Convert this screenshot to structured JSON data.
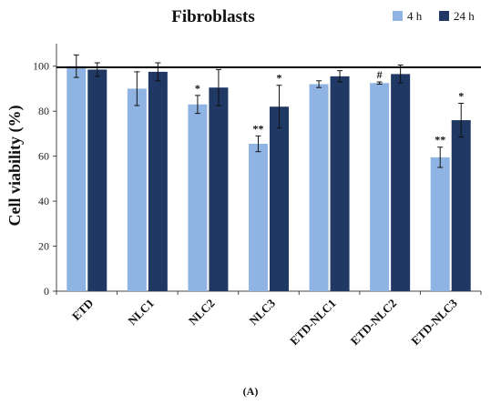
{
  "chart_data": {
    "type": "bar",
    "title": "Fibroblasts",
    "xlabel": "",
    "ylabel": "Cell viability (%)",
    "panel_label": "(A)",
    "categories": [
      "ETD",
      "NLC1",
      "NLC2",
      "NLC3",
      "ETD-NLC1",
      "ETD-NLC2",
      "ETD-NLC3"
    ],
    "series": [
      {
        "name": "4 h",
        "color": "#8fb4e3",
        "values": [
          100,
          90,
          83,
          65.5,
          92,
          92.5,
          59.5
        ],
        "errors": [
          5,
          7.5,
          4,
          3.5,
          1.5,
          0.5,
          4.5
        ],
        "annotations": [
          "",
          "",
          "*",
          "**",
          "",
          "#",
          "**"
        ]
      },
      {
        "name": "24 h",
        "color": "#1f3864",
        "values": [
          98.5,
          97.5,
          90.5,
          82,
          95.5,
          96.5,
          76
        ],
        "errors": [
          3,
          4,
          8,
          9.5,
          2.5,
          4,
          7.5
        ],
        "annotations": [
          "",
          "",
          "",
          "*",
          "",
          "",
          "*"
        ]
      }
    ],
    "ylim": [
      0,
      110
    ],
    "yticks": [
      0,
      20,
      40,
      60,
      80,
      100
    ],
    "reference_line": 99.5,
    "legend_position": "top-right",
    "grid": false
  }
}
